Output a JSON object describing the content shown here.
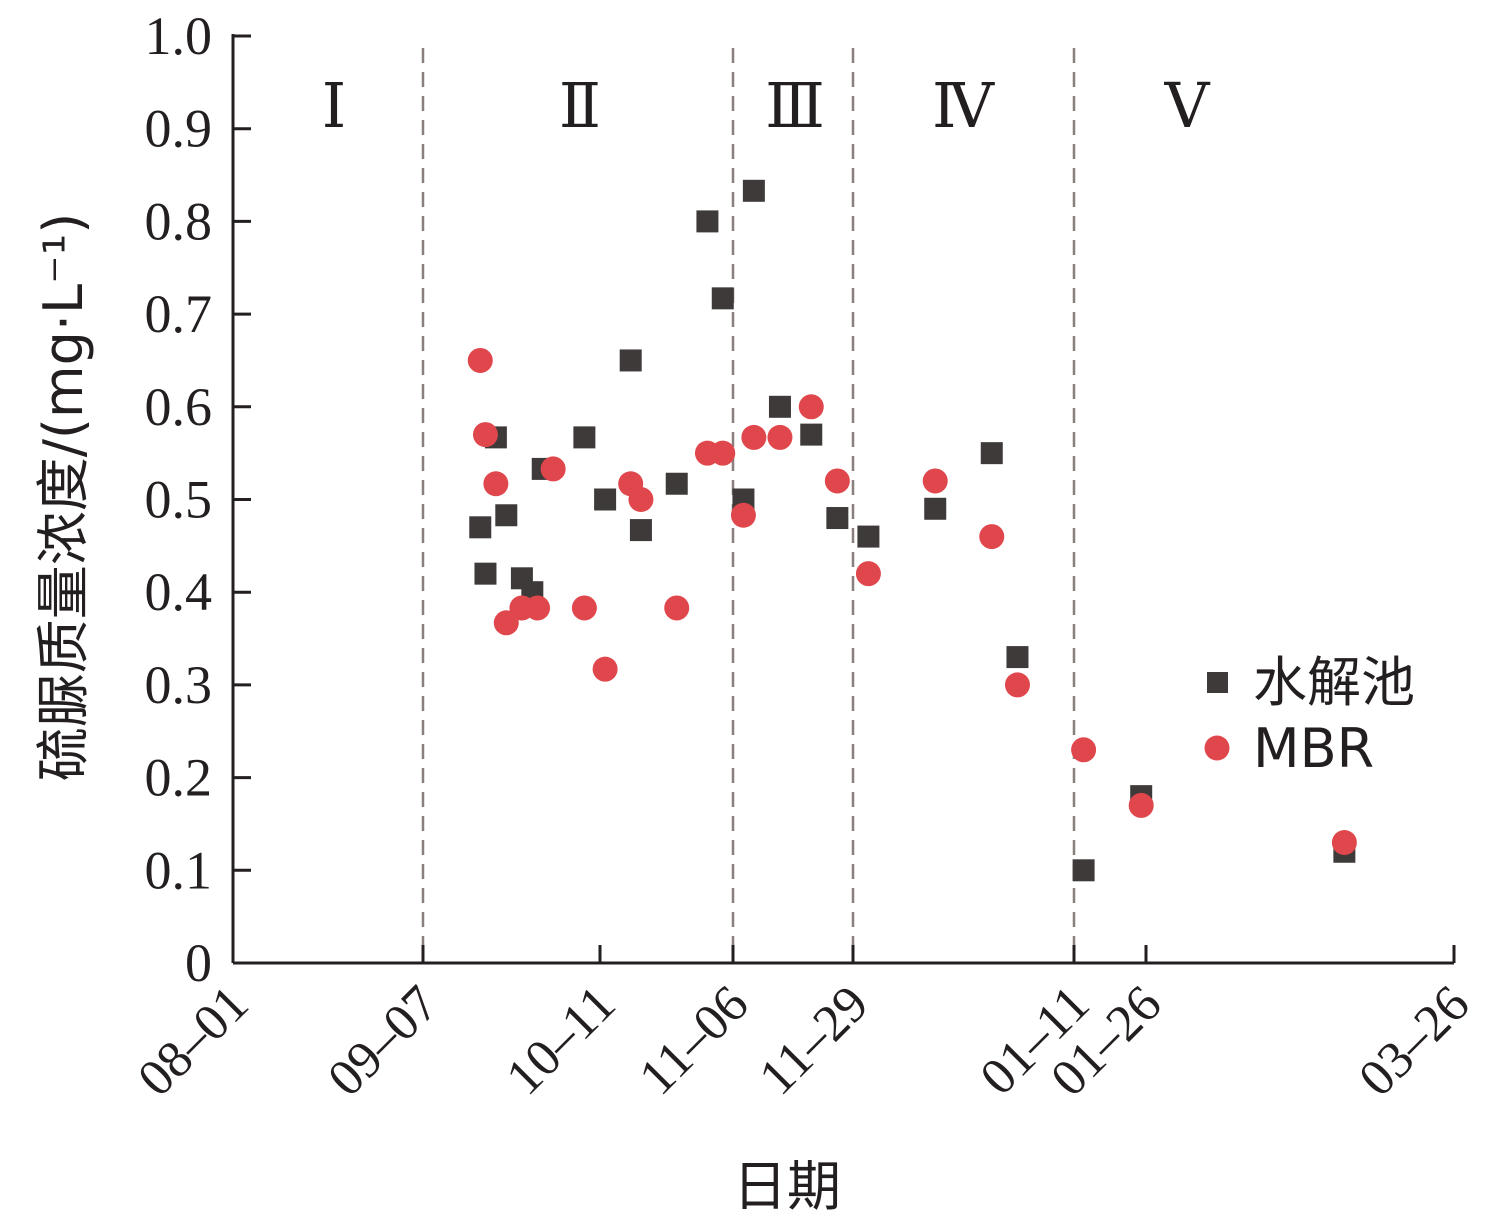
{
  "chart_data": {
    "type": "scatter",
    "xlabel": "日期",
    "ylabel": "硫脲质量浓度/(mg·L⁻¹)",
    "x_ticks": [
      "08–01",
      "09–07",
      "10–11",
      "11–06",
      "11–29",
      "01–11",
      "01–26",
      "03–26"
    ],
    "ylim": [
      0,
      1.0
    ],
    "y_ticks": [
      "0",
      "0.1",
      "0.2",
      "0.3",
      "0.4",
      "0.5",
      "0.6",
      "0.7",
      "0.8",
      "0.9",
      "1.0"
    ],
    "y_tick_values": [
      0,
      0.1,
      0.2,
      0.3,
      0.4,
      0.5,
      0.6,
      0.7,
      0.8,
      0.9,
      1.0
    ],
    "phase_boundaries": [
      "09–07",
      "11–06",
      "11–29",
      "01–11"
    ],
    "phases": [
      "Ⅰ",
      "Ⅱ",
      "Ⅲ",
      "Ⅳ",
      "Ⅴ"
    ],
    "legend_position": "right",
    "grid": false,
    "series": [
      {
        "name": "水解池",
        "marker": "square",
        "color": "#3f3a3a",
        "points": [
          [
            "09-18",
            0.47
          ],
          [
            "09-19",
            0.42
          ],
          [
            "09-21",
            0.567
          ],
          [
            "09-23",
            0.483
          ],
          [
            "09-26",
            0.415
          ],
          [
            "09-28",
            0.4
          ],
          [
            "09-30",
            0.533
          ],
          [
            "10-08",
            0.567
          ],
          [
            "10-12",
            0.5
          ],
          [
            "10-17",
            0.65
          ],
          [
            "10-19",
            0.467
          ],
          [
            "10-26",
            0.517
          ],
          [
            "11-01",
            0.8
          ],
          [
            "11-04",
            0.717
          ],
          [
            "11-08",
            0.5
          ],
          [
            "11-10",
            0.833
          ],
          [
            "11-15",
            0.6
          ],
          [
            "11-21",
            0.57
          ],
          [
            "11-26",
            0.48
          ],
          [
            "12-02",
            0.46
          ],
          [
            "12-15",
            0.49
          ],
          [
            "12-26",
            0.55
          ],
          [
            "12-31",
            0.33
          ],
          [
            "01-13",
            0.1
          ],
          [
            "01-25",
            0.18
          ],
          [
            "03-05",
            0.12
          ]
        ]
      },
      {
        "name": "MBR",
        "marker": "circle",
        "color": "#e0474c",
        "points": [
          [
            "09-18",
            0.65
          ],
          [
            "09-19",
            0.57
          ],
          [
            "09-21",
            0.517
          ],
          [
            "09-23",
            0.367
          ],
          [
            "09-26",
            0.383
          ],
          [
            "09-29",
            0.383
          ],
          [
            "10-02",
            0.533
          ],
          [
            "10-08",
            0.383
          ],
          [
            "10-12",
            0.317
          ],
          [
            "10-17",
            0.517
          ],
          [
            "10-19",
            0.5
          ],
          [
            "10-26",
            0.383
          ],
          [
            "11-01",
            0.55
          ],
          [
            "11-04",
            0.55
          ],
          [
            "11-08",
            0.483
          ],
          [
            "11-10",
            0.567
          ],
          [
            "11-15",
            0.567
          ],
          [
            "11-21",
            0.6
          ],
          [
            "11-26",
            0.52
          ],
          [
            "12-02",
            0.42
          ],
          [
            "12-15",
            0.52
          ],
          [
            "12-26",
            0.46
          ],
          [
            "12-31",
            0.3
          ],
          [
            "01-13",
            0.23
          ],
          [
            "01-25",
            0.17
          ],
          [
            "03-05",
            0.13
          ]
        ]
      }
    ]
  }
}
